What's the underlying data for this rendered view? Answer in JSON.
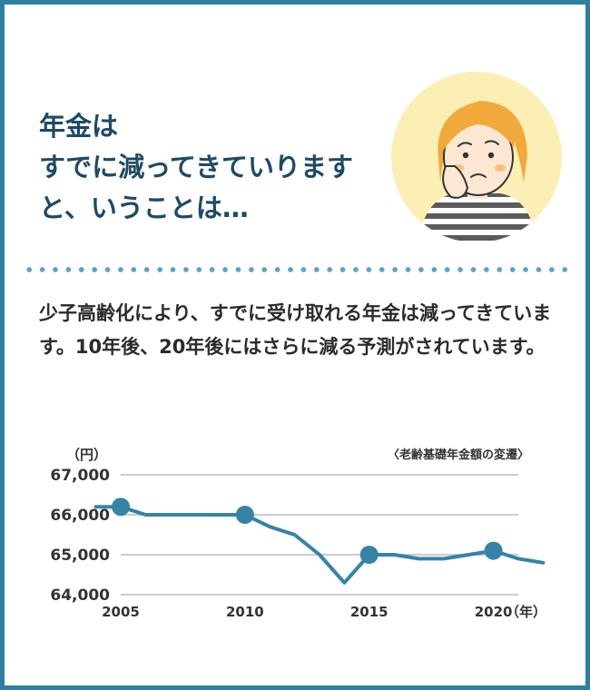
{
  "headline": {
    "line1": "年金は",
    "line2": "すでに減ってきていります",
    "line3": "と、いうことは…"
  },
  "illustration": {
    "icon": "worried-woman-icon",
    "circle_color": "#fcefb4",
    "hair_color": "#f2a93b"
  },
  "body": {
    "text": "少子高齢化により、すでに受け取れる年金は減ってきています。10年後、20年後にはさらに減る予測がされています。"
  },
  "colors": {
    "border": "#2e7fa2",
    "headline": "#1f4a66",
    "divider_dots": "#5aa2c6",
    "line": "#3683a8",
    "gridline": "#cccccc"
  },
  "chart_data": {
    "type": "line",
    "title": "〈老齢基礎年金額の変遷〉",
    "ylabel": "（円）",
    "xlabel": "（年）",
    "ylim": [
      64000,
      67000
    ],
    "xlim": [
      2005,
      2021
    ],
    "y_ticks": [
      "67,000",
      "66,000",
      "65,000",
      "64,000"
    ],
    "y_tick_values": [
      67000,
      66000,
      65000,
      64000
    ],
    "x_ticks": [
      "2005",
      "2010",
      "2015",
      "2020"
    ],
    "x_tick_values": [
      2005,
      2010,
      2015,
      2020
    ],
    "grid": true,
    "series": [
      {
        "x": [
          2004,
          2005,
          2006,
          2007,
          2008,
          2009,
          2010,
          2011,
          2012,
          2013,
          2014,
          2015,
          2016,
          2017,
          2018,
          2019,
          2020,
          2021,
          2022
        ],
        "values": [
          66200,
          66200,
          66000,
          66000,
          66000,
          66000,
          66000,
          65700,
          65500,
          65000,
          64300,
          65000,
          65000,
          64900,
          64900,
          65000,
          65100,
          64900,
          64800
        ]
      }
    ],
    "markers": [
      {
        "x": 2005,
        "y": 66200
      },
      {
        "x": 2010,
        "y": 66000
      },
      {
        "x": 2015,
        "y": 65000
      },
      {
        "x": 2020,
        "y": 65100
      }
    ]
  }
}
